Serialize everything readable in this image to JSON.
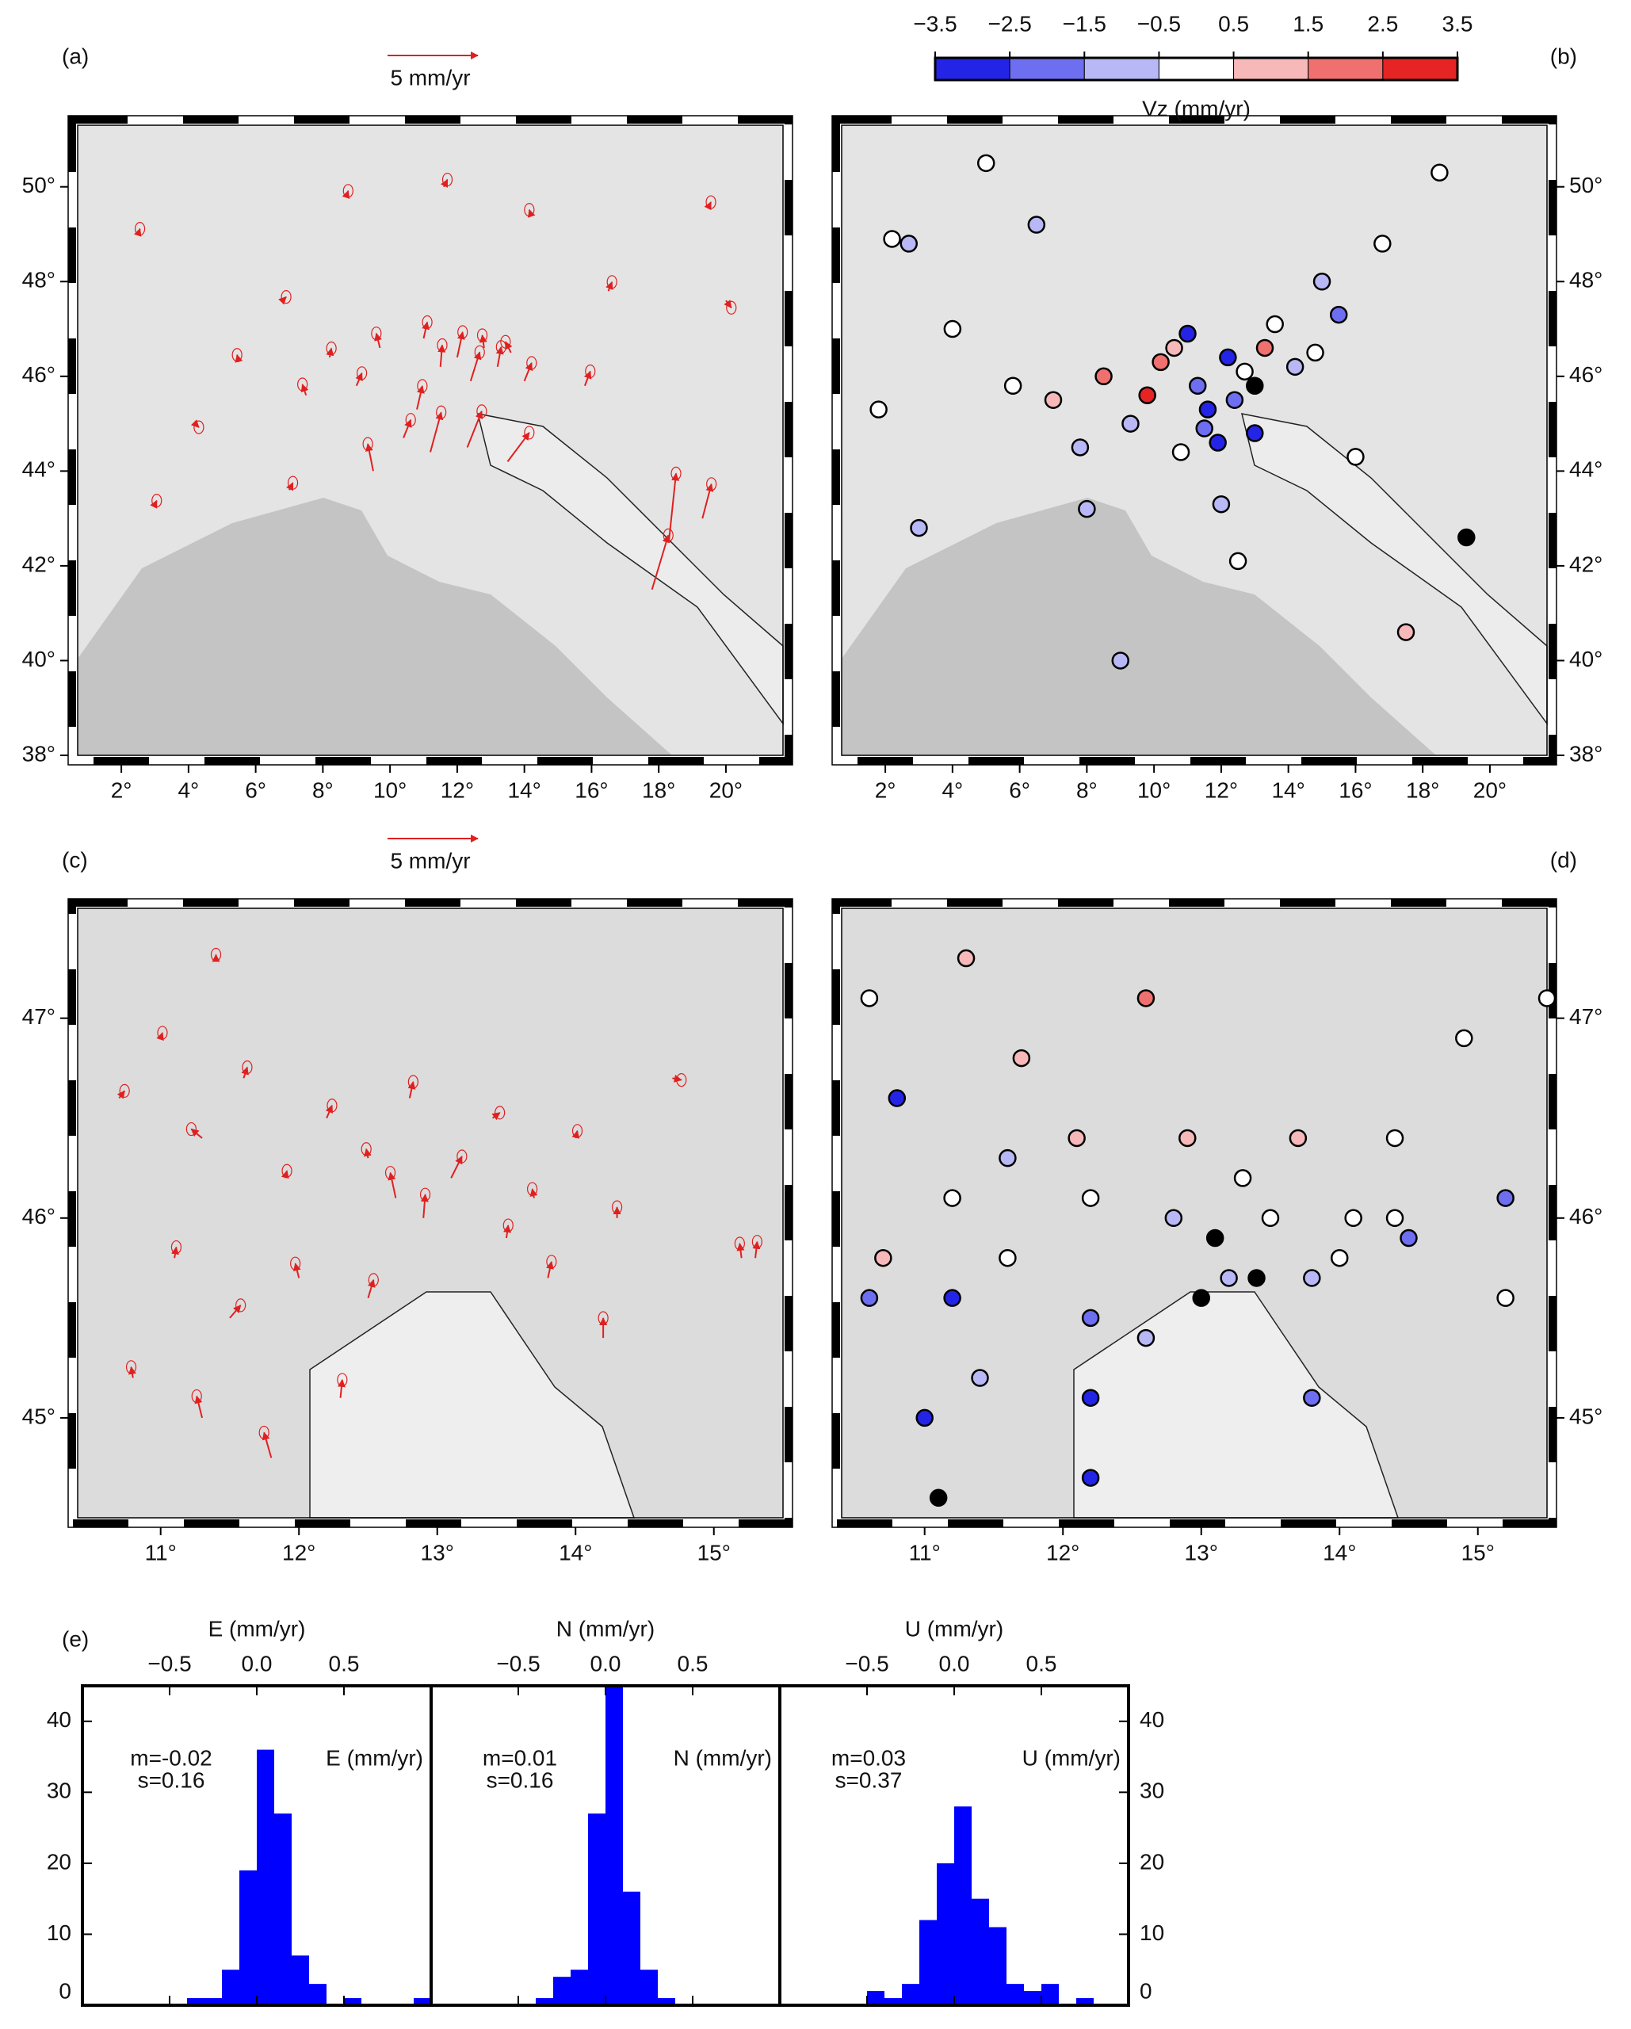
{
  "chart_data": [
    {
      "type": "vector-map",
      "panel_label": "(a)",
      "scale_label": "5 mm/yr",
      "scale_value": 5,
      "color": "#e02020",
      "xlim": [
        0.7,
        21.7
      ],
      "ylim": [
        38,
        51.3
      ],
      "xticks": [
        {
          "value": 2,
          "label": "2°"
        },
        {
          "value": 4,
          "label": "4°"
        },
        {
          "value": 6,
          "label": "6°"
        },
        {
          "value": 8,
          "label": "8°"
        },
        {
          "value": 10,
          "label": "10°"
        },
        {
          "value": 12,
          "label": "12°"
        },
        {
          "value": 14,
          "label": "14°"
        },
        {
          "value": 16,
          "label": "16°"
        },
        {
          "value": 18,
          "label": "18°"
        },
        {
          "value": 20,
          "label": "20°"
        }
      ],
      "yticks": [
        {
          "value": 38,
          "label": "38°"
        },
        {
          "value": 40,
          "label": "40°"
        },
        {
          "value": 42,
          "label": "42°"
        },
        {
          "value": 44,
          "label": "44°"
        },
        {
          "value": 46,
          "label": "46°"
        },
        {
          "value": 48,
          "label": "48°"
        },
        {
          "value": 50,
          "label": "50°"
        }
      ],
      "ytick_side": "left",
      "x": [
        2.5,
        4.2,
        5.5,
        6.8,
        7.5,
        8.2,
        9.0,
        9.7,
        10.4,
        11.0,
        11.5,
        12.0,
        12.4,
        12.8,
        13.2,
        13.6,
        14.0,
        11.2,
        12.3,
        10.8,
        13.5,
        18.3,
        17.8,
        19.3,
        16.5,
        14.2,
        15.8,
        19.5,
        11.6,
        9.5,
        7.0,
        3.0,
        20.0,
        8.7
      ],
      "y": [
        49.0,
        45.0,
        46.3,
        47.6,
        45.6,
        46.4,
        45.8,
        46.6,
        44.7,
        46.8,
        46.2,
        46.4,
        45.9,
        46.6,
        46.2,
        46.5,
        45.9,
        44.4,
        44.5,
        45.3,
        44.2,
        42.5,
        41.5,
        43.0,
        47.8,
        49.4,
        45.8,
        49.6,
        50.0,
        44.0,
        43.6,
        43.3,
        47.6,
        49.8
      ],
      "u": [
        0.1,
        0.2,
        -0.1,
        0.2,
        -0.2,
        0.1,
        0.3,
        -0.2,
        0.4,
        0.2,
        0.1,
        0.3,
        0.5,
        -0.1,
        0.2,
        -0.3,
        0.4,
        0.6,
        0.8,
        0.3,
        1.2,
        0.4,
        0.9,
        0.5,
        0.2,
        -0.1,
        0.3,
        0.1,
        0.2,
        -0.3,
        0.2,
        0.1,
        0.3,
        0.1
      ],
      "v": [
        0.3,
        -0.2,
        0.4,
        0.2,
        0.6,
        0.5,
        0.7,
        0.8,
        1.0,
        0.9,
        1.2,
        1.4,
        1.6,
        0.7,
        1.1,
        0.6,
        1.0,
        2.2,
        2.0,
        1.3,
        1.6,
        3.8,
        3.0,
        1.9,
        0.5,
        0.3,
        0.8,
        0.2,
        0.4,
        1.5,
        0.4,
        0.2,
        -0.4,
        0.3
      ]
    },
    {
      "type": "color-map",
      "panel_label": "(b)",
      "colorbar_label": "Vz (mm/yr)",
      "colorbar_ticks": [
        {
          "value": -3.5,
          "label": "−3.5"
        },
        {
          "value": -2.5,
          "label": "−2.5"
        },
        {
          "value": -1.5,
          "label": "−1.5"
        },
        {
          "value": -0.5,
          "label": "−0.5"
        },
        0.5,
        1.5,
        2.5,
        3.5
      ],
      "colors": [
        "#2424e6",
        "#6e6ef0",
        "#b8b8f6",
        "#ffffff",
        "#f6b8b8",
        "#f07070",
        "#e62424"
      ],
      "out_of_range_color": "#000000",
      "xlim": [
        0.7,
        21.7
      ],
      "ylim": [
        38,
        51.3
      ],
      "xticks": [
        {
          "value": 2,
          "label": "2°"
        },
        {
          "value": 4,
          "label": "4°"
        },
        {
          "value": 6,
          "label": "6°"
        },
        {
          "value": 8,
          "label": "8°"
        },
        {
          "value": 10,
          "label": "10°"
        },
        {
          "value": 12,
          "label": "12°"
        },
        {
          "value": 14,
          "label": "14°"
        },
        {
          "value": 16,
          "label": "16°"
        },
        {
          "value": 18,
          "label": "18°"
        },
        {
          "value": 20,
          "label": "20°"
        }
      ],
      "yticks": [
        {
          "value": 38,
          "label": "38°"
        },
        {
          "value": 40,
          "label": "40°"
        },
        {
          "value": 42,
          "label": "42°"
        },
        {
          "value": 44,
          "label": "44°"
        },
        {
          "value": 46,
          "label": "46°"
        },
        {
          "value": 48,
          "label": "48°"
        },
        {
          "value": 50,
          "label": "50°"
        }
      ],
      "ytick_side": "right",
      "x": [
        1.8,
        2.7,
        4.0,
        5.0,
        5.8,
        6.5,
        7.0,
        7.8,
        8.5,
        9.3,
        9.8,
        10.2,
        10.6,
        11.0,
        11.3,
        11.6,
        11.9,
        12.2,
        12.4,
        12.7,
        13.0,
        13.3,
        13.6,
        14.2,
        14.8,
        15.5,
        16.0,
        12.0,
        12.5,
        11.5,
        10.8,
        13.0,
        19.3,
        17.5,
        8.0,
        3.0,
        2.2,
        15.0,
        18.5,
        16.8,
        9.0
      ],
      "y": [
        45.3,
        48.8,
        47.0,
        50.5,
        45.8,
        49.2,
        45.5,
        44.5,
        46.0,
        45.0,
        45.6,
        46.3,
        46.6,
        46.9,
        45.8,
        45.3,
        44.6,
        46.4,
        45.5,
        46.1,
        45.8,
        46.6,
        47.1,
        46.2,
        46.5,
        47.3,
        44.3,
        43.3,
        42.1,
        44.9,
        44.4,
        44.8,
        42.6,
        40.6,
        43.2,
        42.8,
        48.9,
        48.0,
        50.3,
        48.8,
        40.0
      ],
      "values": [
        0.0,
        -0.8,
        0.2,
        0.1,
        0.0,
        -1.0,
        1.2,
        -0.8,
        1.8,
        -0.9,
        3.0,
        2.2,
        1.5,
        -2.9,
        -1.6,
        -3.2,
        -3.0,
        -3.2,
        -2.0,
        0.3,
        -4.5,
        2.3,
        0.2,
        -1.1,
        0.4,
        -1.6,
        0.1,
        -1.0,
        0.2,
        -1.8,
        0.3,
        -3.0,
        -4.0,
        1.2,
        -1.3,
        -1.1,
        0.1,
        -1.2,
        0.3,
        0.2,
        -1.0
      ]
    },
    {
      "type": "vector-map",
      "panel_label": "(c)",
      "scale_label": "5 mm/yr",
      "scale_value": 5,
      "color": "#e02020",
      "xlim": [
        10.4,
        15.5
      ],
      "ylim": [
        44.5,
        47.55
      ],
      "xticks": [
        {
          "value": 11,
          "label": "11°"
        },
        {
          "value": 12,
          "label": "12°"
        },
        {
          "value": 13,
          "label": "13°"
        },
        {
          "value": 14,
          "label": "14°"
        },
        {
          "value": 15,
          "label": "15°"
        }
      ],
      "yticks": [
        {
          "value": 45,
          "label": "45°"
        },
        {
          "value": 46,
          "label": "46°"
        },
        {
          "value": 47,
          "label": "47°"
        }
      ],
      "ytick_side": "left",
      "x": [
        10.7,
        11.0,
        11.3,
        11.6,
        11.9,
        12.2,
        12.5,
        12.8,
        13.1,
        13.4,
        13.7,
        14.0,
        14.3,
        14.7,
        15.2,
        11.1,
        11.5,
        12.0,
        12.5,
        12.9,
        13.5,
        13.8,
        10.8,
        11.3,
        11.8,
        12.3,
        14.2,
        15.3,
        11.4,
        12.7
      ],
      "y": [
        46.6,
        46.9,
        46.4,
        46.7,
        46.2,
        46.5,
        46.3,
        46.6,
        46.2,
        46.5,
        46.1,
        46.4,
        46.0,
        46.7,
        45.8,
        45.8,
        45.5,
        45.7,
        45.6,
        46.0,
        45.9,
        45.7,
        45.2,
        45.0,
        44.8,
        45.1,
        45.4,
        45.8,
        47.3,
        46.1
      ],
      "u": [
        0.3,
        0.1,
        -0.6,
        0.2,
        0.1,
        0.3,
        -0.1,
        0.2,
        0.6,
        0.4,
        -0.1,
        0.1,
        0.0,
        0.5,
        -0.1,
        0.1,
        0.6,
        -0.2,
        0.3,
        0.1,
        0.1,
        0.2,
        -0.1,
        -0.3,
        -0.4,
        0.1,
        0.0,
        0.1,
        0.0,
        -0.3
      ],
      "v": [
        0.4,
        0.3,
        0.5,
        0.6,
        0.4,
        0.7,
        0.5,
        0.9,
        1.2,
        0.3,
        0.5,
        0.4,
        0.6,
        -0.1,
        0.8,
        0.6,
        0.7,
        0.8,
        1.0,
        1.3,
        0.7,
        0.9,
        0.6,
        1.2,
        1.4,
        1.0,
        1.1,
        0.9,
        0.2,
        1.4
      ]
    },
    {
      "type": "color-map",
      "panel_label": "(d)",
      "xlim": [
        10.4,
        15.5
      ],
      "ylim": [
        44.5,
        47.55
      ],
      "xticks": [
        {
          "value": 11,
          "label": "11°"
        },
        {
          "value": 12,
          "label": "12°"
        },
        {
          "value": 13,
          "label": "13°"
        },
        {
          "value": 14,
          "label": "14°"
        },
        {
          "value": 15,
          "label": "15°"
        }
      ],
      "yticks": [
        {
          "value": 45,
          "label": "45°"
        },
        {
          "value": 46,
          "label": "46°"
        },
        {
          "value": 47,
          "label": "47°"
        }
      ],
      "ytick_side": "right",
      "x": [
        10.6,
        10.8,
        11.3,
        11.7,
        12.1,
        12.6,
        12.9,
        13.3,
        13.7,
        14.4,
        14.9,
        15.2,
        15.5,
        11.2,
        11.6,
        12.2,
        12.8,
        13.1,
        13.5,
        14.0,
        14.5,
        10.7,
        11.2,
        11.6,
        12.2,
        12.6,
        13.0,
        13.4,
        13.8,
        14.4,
        10.6,
        11.0,
        11.4,
        12.2,
        12.2,
        13.2,
        13.8,
        11.1,
        15.2,
        14.1
      ],
      "y": [
        47.1,
        46.6,
        47.3,
        46.8,
        46.4,
        47.1,
        46.4,
        46.2,
        46.4,
        46.4,
        46.9,
        46.1,
        47.1,
        46.1,
        46.3,
        46.1,
        46.0,
        45.9,
        46.0,
        45.8,
        45.9,
        45.8,
        45.6,
        45.8,
        45.5,
        45.4,
        45.6,
        45.7,
        45.7,
        46.0,
        45.6,
        45.0,
        45.2,
        45.1,
        44.7,
        45.7,
        45.1,
        44.6,
        45.6,
        46.0
      ],
      "values": [
        0.2,
        -3.2,
        1.2,
        1.5,
        0.8,
        2.2,
        1.0,
        0.3,
        1.4,
        0.2,
        0.1,
        -1.5,
        0.2,
        0.3,
        -0.9,
        0.5,
        -1.0,
        -4.0,
        0.2,
        0.1,
        -1.5,
        0.9,
        -3.0,
        0.3,
        -1.5,
        -1.0,
        -4.5,
        -4.2,
        -1.3,
        0.1,
        -2.0,
        -2.5,
        -1.4,
        -3.0,
        -3.2,
        -0.8,
        -1.6,
        -4.0,
        0.3,
        0.4
      ]
    },
    {
      "type": "histogram",
      "panel_label": "(e)",
      "title": "E (mm/yr)",
      "label": "E (mm/yr)",
      "annotations": [
        "m=-0.02",
        "s=0.16"
      ],
      "color": "#0000ff",
      "bins": [
        -1,
        -0.9,
        -0.8,
        -0.7,
        -0.6,
        -0.5,
        -0.4,
        -0.3,
        -0.2,
        -0.1,
        0,
        0.1,
        0.2,
        0.3,
        0.4,
        0.5,
        0.6,
        0.7,
        0.8,
        0.9,
        1
      ],
      "counts": [
        0,
        0,
        0,
        0,
        0,
        0,
        1,
        1,
        5,
        19,
        36,
        27,
        7,
        3,
        0,
        1,
        0,
        0,
        0,
        1
      ],
      "xlim": [
        -1,
        1
      ],
      "xticks": [
        {
          "value": -0.5,
          "label": "−0.5"
        },
        {
          "value": 0,
          "label": "0.0"
        },
        0.5
      ],
      "ylim": [
        0,
        45
      ],
      "yticks": [
        0,
        10,
        20,
        30,
        40
      ],
      "ytick_side": "left"
    },
    {
      "type": "histogram",
      "title": "N (mm/yr)",
      "label": "N (mm/yr)",
      "annotations": [
        "m=0.01",
        "s=0.16"
      ],
      "color": "#0000ff",
      "bins": [
        -1,
        -0.9,
        -0.8,
        -0.7,
        -0.6,
        -0.5,
        -0.4,
        -0.3,
        -0.2,
        -0.1,
        0,
        0.1,
        0.2,
        0.3,
        0.4,
        0.5,
        0.6,
        0.7,
        0.8,
        0.9,
        1
      ],
      "counts": [
        0,
        0,
        0,
        0,
        0,
        0,
        1,
        4,
        5,
        27,
        45,
        16,
        5,
        1,
        0,
        0,
        0,
        0,
        0,
        0
      ],
      "xlim": [
        -1,
        1
      ],
      "xticks": [
        {
          "value": -0.5,
          "label": "−0.5"
        },
        {
          "value": 0,
          "label": "0.0"
        },
        0.5
      ],
      "ylim": [
        0,
        45
      ]
    },
    {
      "type": "histogram",
      "title": "U (mm/yr)",
      "label": "U (mm/yr)",
      "annotations": [
        "m=0.03",
        "s=0.37"
      ],
      "color": "#0000ff",
      "bins": [
        -1,
        -0.9,
        -0.8,
        -0.7,
        -0.6,
        -0.5,
        -0.4,
        -0.3,
        -0.2,
        -0.1,
        0,
        0.1,
        0.2,
        0.3,
        0.4,
        0.5,
        0.6,
        0.7,
        0.8,
        0.9,
        1
      ],
      "counts": [
        0,
        0,
        0,
        0,
        0,
        2,
        1,
        3,
        12,
        20,
        28,
        15,
        11,
        3,
        2,
        3,
        0,
        1,
        0,
        0
      ],
      "xlim": [
        -1,
        1
      ],
      "xticks": [
        {
          "value": -0.5,
          "label": "−0.5"
        },
        {
          "value": 0,
          "label": "0.0"
        },
        0.5
      ],
      "ylim": [
        0,
        45
      ],
      "yticks": [
        0,
        10,
        20,
        30,
        40
      ],
      "ytick_side": "right"
    }
  ]
}
